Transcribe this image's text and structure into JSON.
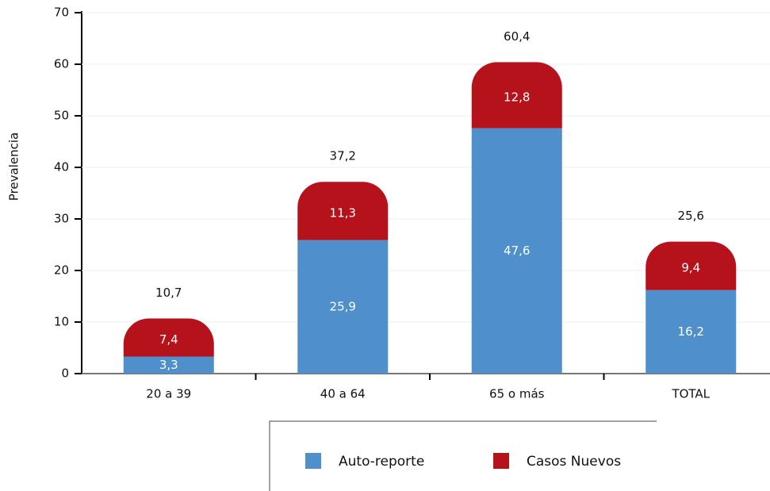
{
  "chart_data": {
    "type": "stacked_bar",
    "y_label": "Prevalencia",
    "categories": [
      "20 a 39",
      "40 a 64",
      "65 o más",
      "TOTAL"
    ],
    "series": [
      {
        "name": "Auto-reporte",
        "color": "#4f8fcb",
        "values": [
          3.3,
          25.9,
          47.6,
          16.2
        ],
        "value_labels": [
          "3,3",
          "25,9",
          "47,6",
          "16,2"
        ]
      },
      {
        "name": "Casos Nuevos",
        "color": "#b5121b",
        "values": [
          7.4,
          11.3,
          12.8,
          9.4
        ],
        "value_labels": [
          "7,4",
          "11,3",
          "12,8",
          "9,4"
        ]
      }
    ],
    "totals": [
      10.7,
      37.2,
      60.4,
      25.6
    ],
    "total_labels": [
      "10,7",
      "37,2",
      "60,4",
      "25,6"
    ],
    "ylim": [
      0,
      70
    ],
    "yticks": [
      0,
      10,
      20,
      30,
      40,
      50,
      60,
      70
    ]
  }
}
